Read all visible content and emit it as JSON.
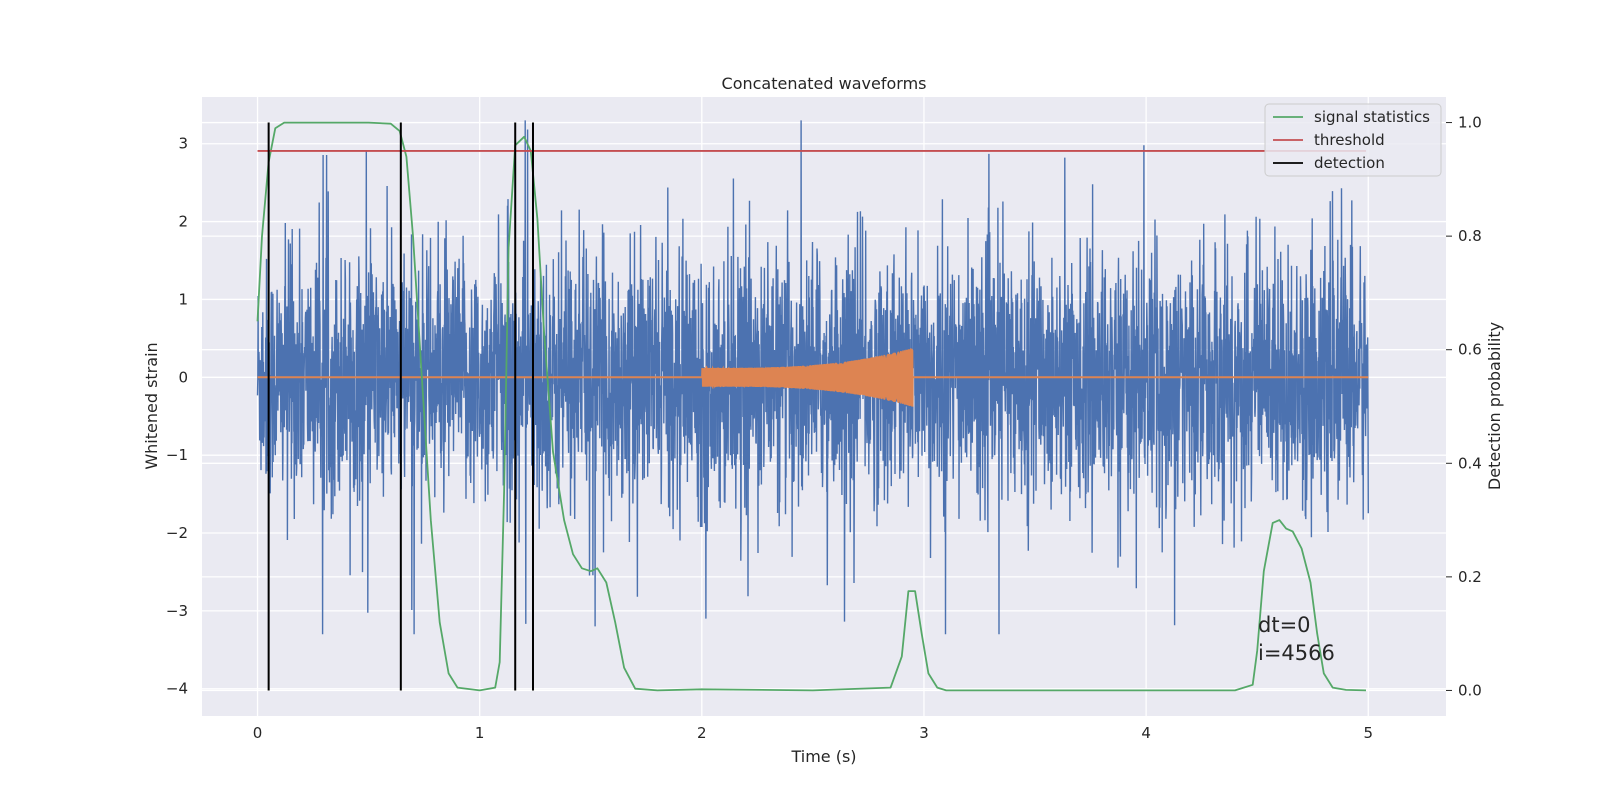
{
  "chart_data": {
    "type": "line",
    "title": "Concatenated waveforms",
    "xlabel": "Time (s)",
    "ylabel": "Whitened strain",
    "y2label": "Detection probability",
    "xlim": [
      -0.25,
      5.35
    ],
    "ylim": [
      -4.35,
      3.6
    ],
    "y2lim": [
      -0.045,
      1.045
    ],
    "xticks": [
      0,
      1,
      2,
      3,
      4,
      5
    ],
    "yticks": [
      -4,
      -3,
      -2,
      -1,
      0,
      1,
      2,
      3
    ],
    "y2ticks": [
      0.0,
      0.2,
      0.4,
      0.6,
      0.8,
      1.0
    ],
    "grid": true,
    "legend_position": "top-right",
    "series": [
      {
        "name": "",
        "kind": "noise",
        "color": "#4c72b0",
        "x_range": [
          0,
          5
        ],
        "approx_range": [
          -3.3,
          3.3
        ],
        "typical_amplitude": 1.0
      },
      {
        "name": "",
        "kind": "chirp",
        "color": "#dd8452",
        "baseline": 0.0,
        "x_range": [
          0,
          5
        ],
        "chirp_x_range": [
          2.0,
          2.95
        ],
        "chirp_amplitude_start": 0.12,
        "chirp_amplitude_end": 0.38
      },
      {
        "name": "signal statistics",
        "axis": "right",
        "color": "#55a868",
        "x": [
          0.0,
          0.02,
          0.05,
          0.08,
          0.12,
          0.2,
          0.3,
          0.4,
          0.5,
          0.6,
          0.64,
          0.67,
          0.7,
          0.74,
          0.78,
          0.82,
          0.86,
          0.9,
          1.0,
          1.07,
          1.09,
          1.11,
          1.13,
          1.16,
          1.2,
          1.23,
          1.26,
          1.29,
          1.33,
          1.38,
          1.42,
          1.46,
          1.5,
          1.53,
          1.57,
          1.61,
          1.65,
          1.7,
          1.8,
          2.0,
          2.5,
          2.85,
          2.9,
          2.93,
          2.96,
          2.99,
          3.02,
          3.06,
          3.1,
          3.5,
          4.0,
          4.4,
          4.48,
          4.5,
          4.53,
          4.57,
          4.6,
          4.63,
          4.66,
          4.7,
          4.74,
          4.77,
          4.8,
          4.84,
          4.9,
          4.99
        ],
        "y": [
          0.65,
          0.8,
          0.93,
          0.99,
          1.0,
          1.0,
          1.0,
          1.0,
          1.0,
          0.998,
          0.985,
          0.94,
          0.8,
          0.55,
          0.3,
          0.12,
          0.03,
          0.005,
          0.0,
          0.005,
          0.05,
          0.35,
          0.78,
          0.96,
          0.975,
          0.95,
          0.83,
          0.63,
          0.42,
          0.3,
          0.24,
          0.215,
          0.21,
          0.215,
          0.19,
          0.12,
          0.04,
          0.003,
          0.0,
          0.002,
          0.0,
          0.005,
          0.06,
          0.175,
          0.175,
          0.1,
          0.03,
          0.005,
          0.0,
          0.0,
          0.0,
          0.0,
          0.01,
          0.07,
          0.21,
          0.295,
          0.3,
          0.285,
          0.28,
          0.25,
          0.19,
          0.1,
          0.03,
          0.005,
          0.001,
          0.0
        ]
      },
      {
        "name": "threshold",
        "axis": "right",
        "color": "#c44e52",
        "x": [
          0.0,
          4.99
        ],
        "y": [
          0.95,
          0.95
        ]
      },
      {
        "name": "detection",
        "axis": "right",
        "color": "#000000",
        "type": "vlines",
        "x": [
          0.05,
          0.645,
          1.16,
          1.24
        ],
        "y_range": [
          0.0,
          1.0
        ]
      }
    ],
    "annotations": [
      {
        "text": "dt=0",
        "x": 4.5,
        "y": -3.05
      },
      {
        "text": "i=4566",
        "x": 4.5,
        "y": -3.4
      }
    ]
  }
}
